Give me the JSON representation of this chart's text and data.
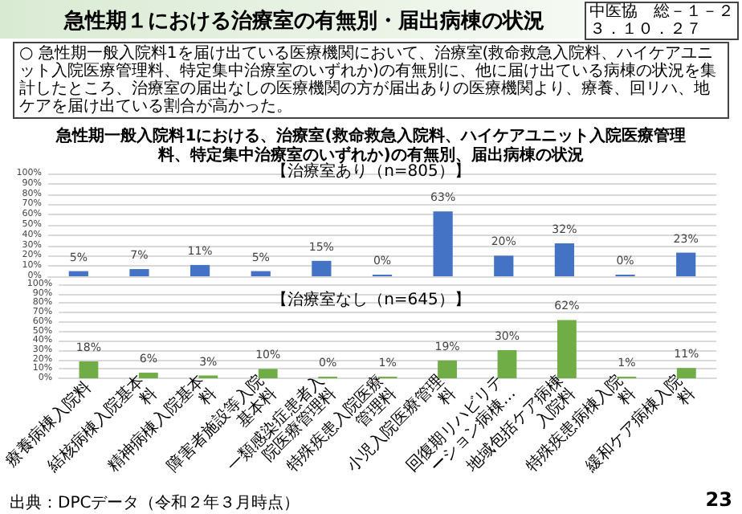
{
  "chart_data": [
    {
      "type": "bar",
      "title": "急性期一般入院料1における、治療室(救命救急入院料、ハイケアユニット入院医療管理料、特定集中治療室のいずれか)の有無別、届出病棟の状況",
      "subtitle": "【治療室あり（n=805）】",
      "annotations": [
        "急性期１における治療室の有無別・届出病棟の状況",
        "中医協　総－１－２",
        "３．１０．２７",
        "○ 急性期一般入院料1を届け出ている医療機関において、治療室(救命救急入院料、ハイケアユニット入院医療管理料、特定集中治療室のいずれか)の有無別に、他に届け出ている病棟の状況を集計したところ、治療室の届出なしの医療機関の方が届出ありの医療機関より、療養、回リハ、地ケアを届け出ている割合が高かった。"
      ],
      "categories": [
        "療養病棟入院料",
        "結核病棟入院基本料",
        "精神病棟入院基本料",
        "障害者施設等入院基本料",
        "一類感染症患者入院医療管理料",
        "特殊疾患入院医療管理料",
        "小児入院医療管理料",
        "回復期リハビリテーション病棟…",
        "地域包括ケア病棟入院料",
        "特殊疾患病棟入院料",
        "緩和ケア病棟入院料"
      ],
      "values": [
        5,
        7,
        11,
        5,
        15,
        0,
        63,
        20,
        32,
        0,
        23
      ],
      "value_labels": [
        "5%",
        "7%",
        "11%",
        "5%",
        "15%",
        "0%",
        "63%",
        "20%",
        "32%",
        "0%",
        "23%"
      ],
      "color": "#4472c4",
      "ylim": [
        0,
        100
      ],
      "yticks": [
        {
          "value": 0,
          "label": "0%"
        },
        {
          "value": 10,
          "label": "10%"
        },
        {
          "value": 20,
          "label": "20%"
        },
        {
          "value": 30,
          "label": "30%"
        },
        {
          "value": 40,
          "label": "40%"
        },
        {
          "value": 50,
          "label": "50%"
        },
        {
          "value": 60,
          "label": "60%"
        },
        {
          "value": 70,
          "label": "70%"
        },
        {
          "value": 80,
          "label": "80%"
        },
        {
          "value": 90,
          "label": "90%"
        },
        {
          "value": 100,
          "label": "100%"
        }
      ],
      "grid": "y",
      "tick_labels": "y"
    },
    {
      "type": "bar",
      "subtitle": "【治療室なし（n=645）】",
      "annotations": [
        "出典：DPCデータ（令和２年３月時点）",
        "23"
      ],
      "categories": [
        "療養病棟入院料",
        "結核病棟入院基本料",
        "精神病棟入院基本料",
        "障害者施設等入院基本料",
        "一類感染症患者入院医療管理料",
        "特殊疾患入院医療管理料",
        "小児入院医療管理料",
        "回復期リハビリテーション病棟…",
        "地域包括ケア病棟入院料",
        "特殊疾患病棟入院料",
        "緩和ケア病棟入院料"
      ],
      "values": [
        18,
        6,
        3,
        10,
        0,
        1,
        19,
        30,
        62,
        1,
        11
      ],
      "value_labels": [
        "18%",
        "6%",
        "3%",
        "10%",
        "0%",
        "1%",
        "19%",
        "30%",
        "62%",
        "1%",
        "11%"
      ],
      "color": "#70ad47",
      "ylim": [
        0,
        100
      ],
      "yticks": [
        {
          "value": 0,
          "label": "0%"
        },
        {
          "value": 10,
          "label": "10%"
        },
        {
          "value": 20,
          "label": "20%"
        },
        {
          "value": 30,
          "label": "30%"
        },
        {
          "value": 40,
          "label": "40%"
        },
        {
          "value": 50,
          "label": "50%"
        },
        {
          "value": 60,
          "label": "60%"
        },
        {
          "value": 70,
          "label": "70%"
        },
        {
          "value": 80,
          "label": "80%"
        },
        {
          "value": 90,
          "label": "90%"
        },
        {
          "value": 100,
          "label": "100%"
        }
      ],
      "grid": "y"
    }
  ]
}
